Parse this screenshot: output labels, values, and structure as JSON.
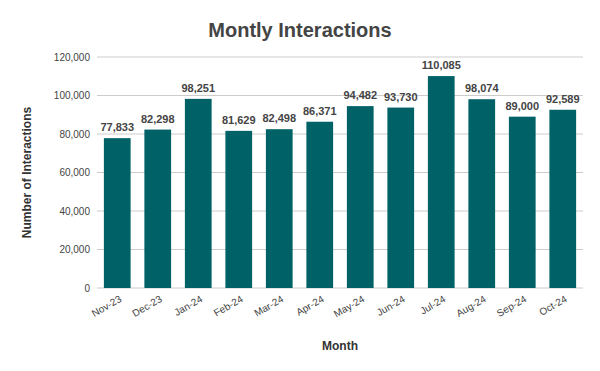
{
  "chart_data": {
    "type": "bar",
    "title": "Montly Interactions",
    "x_label": "Month",
    "y_label": "Number of Interactions",
    "categories": [
      "Nov-23",
      "Dec-23",
      "Jan-24",
      "Feb-24",
      "Mar-24",
      "Apr-24",
      "May-24",
      "Jun-24",
      "Jul-24",
      "Aug-24",
      "Sep-24",
      "Oct-24"
    ],
    "values": [
      77833,
      82298,
      98251,
      81629,
      82498,
      86371,
      94482,
      93730,
      110085,
      98074,
      89000,
      92589
    ],
    "value_labels": [
      "77,833",
      "82,298",
      "98,251",
      "81,629",
      "82,498",
      "86,371",
      "94,482",
      "93,730",
      "110,085",
      "98,074",
      "89,000",
      "92,589"
    ],
    "color": "#006266",
    "ylim": [
      0,
      120000
    ],
    "yticks": [
      0,
      {
        "value": 20000,
        "label": "20,000"
      },
      {
        "value": 40000,
        "label": "40,000"
      },
      {
        "value": 60000,
        "label": "60,000"
      },
      {
        "value": 80000,
        "label": "80,000"
      },
      {
        "value": 100000,
        "label": "100,000"
      },
      {
        "value": 120000,
        "label": "120,000"
      }
    ],
    "grid": true,
    "data_labels": true
  }
}
